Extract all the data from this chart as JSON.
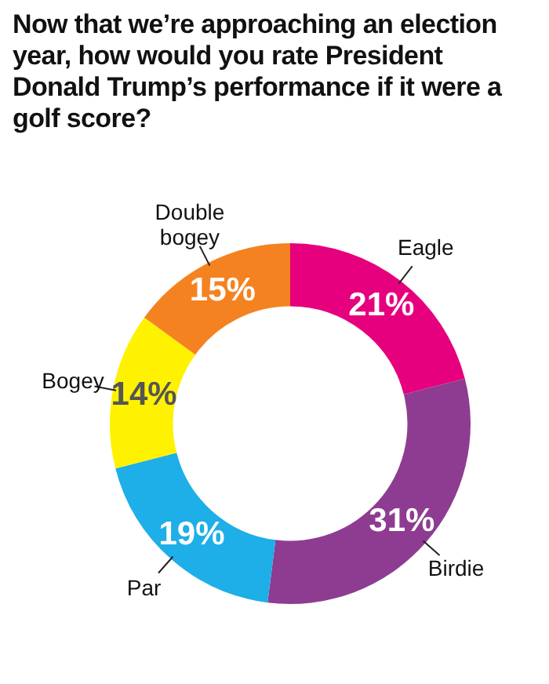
{
  "chart_data": {
    "type": "donut",
    "title": "Now that we’re approaching an election year, how would you rate President Donald Trump’s performance if it were a golf score?",
    "categories": [
      "Eagle",
      "Birdie",
      "Par",
      "Bogey",
      "Double bogey"
    ],
    "values": [
      21,
      31,
      19,
      14,
      15
    ],
    "colors": [
      "#e6007e",
      "#8e3c92",
      "#1eaee8",
      "#fff200",
      "#f58220"
    ],
    "value_labels": [
      "21%",
      "31%",
      "19%",
      "14%",
      "15%"
    ]
  }
}
